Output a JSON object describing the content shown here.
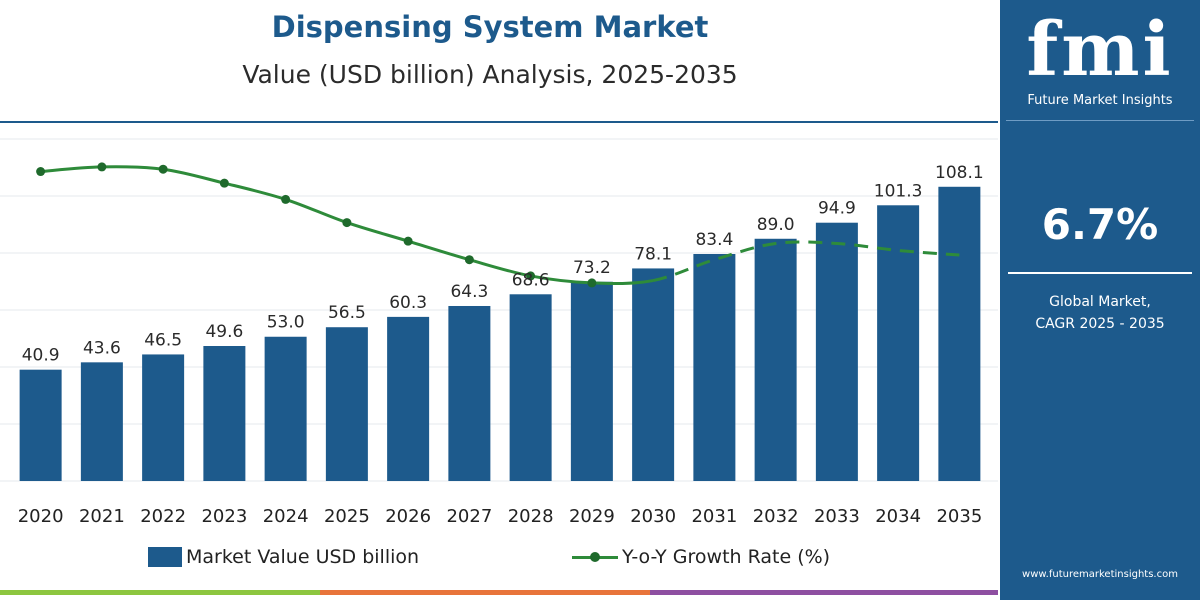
{
  "chart_data": {
    "type": "bar",
    "title": "Dispensing System Market",
    "subtitle": "Value (USD billion) Analysis, 2025-2035",
    "categories": [
      "2020",
      "2021",
      "2022",
      "2023",
      "2024",
      "2025",
      "2026",
      "2027",
      "2028",
      "2029",
      "2030",
      "2031",
      "2032",
      "2033",
      "2034",
      "2035"
    ],
    "series": [
      {
        "name": "Market Value USD billion",
        "kind": "bar",
        "color": "#1d5a8c",
        "values": [
          40.9,
          43.6,
          46.5,
          49.6,
          53.0,
          56.5,
          60.3,
          64.3,
          68.6,
          73.2,
          78.1,
          83.4,
          89.0,
          94.9,
          101.3,
          108.1
        ],
        "labels": [
          "40.9",
          "43.6",
          "46.5",
          "49.6",
          "53.0",
          "56.5",
          "60.3",
          "64.3",
          "68.6",
          "73.2",
          "78.1",
          "83.4",
          "89.0",
          "94.9",
          "101.3",
          "108.1"
        ]
      },
      {
        "name": "Y-o-Y Growth Rate (%)",
        "kind": "line",
        "color": "#2e8b3a",
        "marker_color": "#1f6a2c",
        "values": [
          7.2,
          7.3,
          7.25,
          6.95,
          6.6,
          6.1,
          5.7,
          5.3,
          4.95,
          4.8,
          4.85,
          5.3,
          5.65,
          5.65,
          5.5,
          5.4
        ],
        "dashed_from_index": 10
      }
    ],
    "ylim": [
      0,
      115
    ],
    "grid": true,
    "legend": "bottom"
  },
  "side_panel": {
    "logo_text": "fmi",
    "logo_subtext": "Future Market Insights",
    "cagr_value": "6.7%",
    "cagr_label_line1": "Global Market,",
    "cagr_label_line2": "CAGR 2025 - 2035",
    "website": "www.futuremarketinsights.com"
  },
  "colors": {
    "brand_blue": "#1d5a8c",
    "growth_green": "#2e8b3a",
    "footer_green": "#8dc63f",
    "footer_orange": "#e8743b",
    "footer_purple": "#8e4fa1"
  }
}
